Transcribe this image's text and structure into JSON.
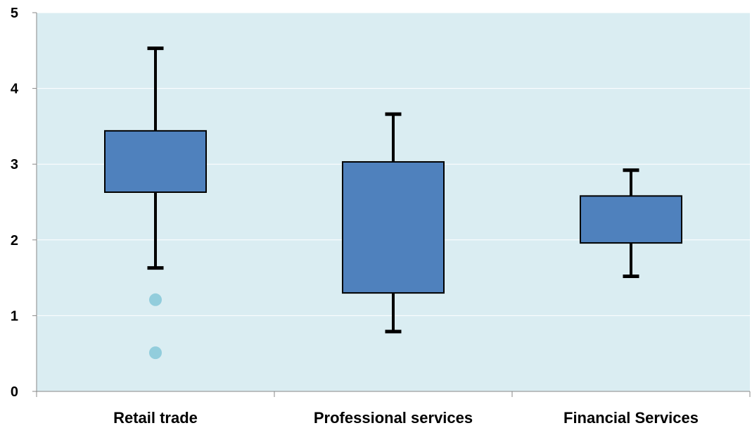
{
  "chart_data": {
    "type": "boxplot",
    "title": "",
    "xlabel": "",
    "ylabel": "",
    "ylim": [
      0,
      5
    ],
    "yticks": [
      "0",
      "1",
      "2",
      "3",
      "4",
      "5"
    ],
    "categories": [
      "Retail trade",
      "Professional services",
      "Financial Services"
    ],
    "boxes": [
      {
        "category": "Retail trade",
        "whisker_low": 1.63,
        "q1": 2.63,
        "q3": 3.44,
        "whisker_high": 4.53,
        "outliers": [
          1.21,
          0.51
        ]
      },
      {
        "category": "Professional services",
        "whisker_low": 0.79,
        "q1": 1.3,
        "q3": 3.03,
        "whisker_high": 3.66,
        "outliers": []
      },
      {
        "category": "Financial Services",
        "whisker_low": 1.52,
        "q1": 1.96,
        "q3": 2.58,
        "whisker_high": 2.92,
        "outliers": []
      }
    ],
    "grid": true,
    "colors": {
      "plot_background": "#daedf2",
      "box_fill": "#4f81bd",
      "outlier": "#92cddc",
      "gridline": "#ffffff",
      "axis": "#888888"
    }
  }
}
